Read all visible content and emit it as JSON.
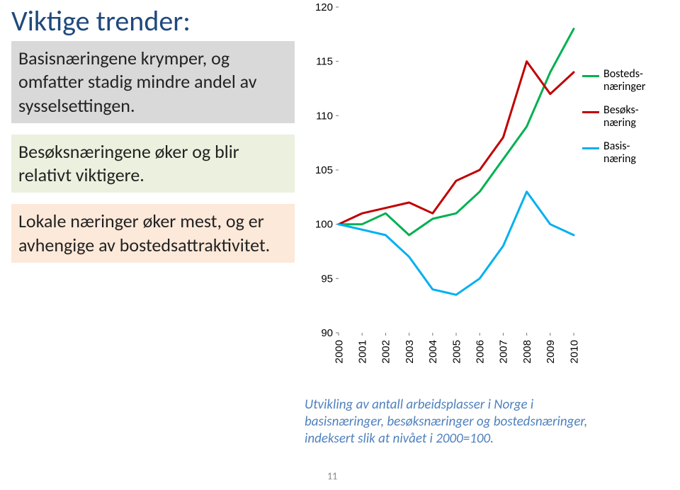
{
  "title": "Viktige trender:",
  "boxes": {
    "b1": "Basisnæringene krymper, og omfatter stadig mindre andel av sysselsettingen.",
    "b2": "Besøksnæringene øker og blir relativt viktigere.",
    "b3": "Lokale næringer øker mest, og er avhengige av bostedsattraktivitet."
  },
  "chart": {
    "type": "line",
    "background_color": "#ffffff",
    "ylim": [
      90,
      120
    ],
    "ytick_step": 5,
    "yticks": [
      90,
      95,
      100,
      105,
      110,
      115,
      120
    ],
    "xlabels": [
      "2000",
      "2001",
      "2002",
      "2003",
      "2004",
      "2005",
      "2006",
      "2007",
      "2008",
      "2009",
      "2010"
    ],
    "tick_fontsize": 15,
    "line_width": 3,
    "series": [
      {
        "name": "Bosteds-næringer",
        "color": "#00b050",
        "values": [
          100,
          100,
          101,
          99,
          100.5,
          101,
          103,
          106,
          109,
          114,
          118
        ]
      },
      {
        "name": "Besøks-næring",
        "color": "#c00000",
        "values": [
          100,
          101,
          101.5,
          102,
          101,
          104,
          105,
          108,
          115,
          112,
          114
        ]
      },
      {
        "name": "Basis-næring",
        "color": "#00b0f0",
        "values": [
          100,
          99.5,
          99,
          97,
          94,
          93.5,
          95,
          98,
          103,
          100,
          99
        ]
      }
    ]
  },
  "legend_items": [
    {
      "label": "Bosteds-næringer",
      "color": "#00b050"
    },
    {
      "label": "Besøks-næring",
      "color": "#c00000"
    },
    {
      "label": "Basis-næring",
      "color": "#00b0f0"
    }
  ],
  "caption": "Utvikling av antall arbeidsplasser i Norge i basisnæringer, besøksnæringer og bostedsnæringer, indeksert slik at nivået i 2000=100.",
  "pagenum": "11"
}
